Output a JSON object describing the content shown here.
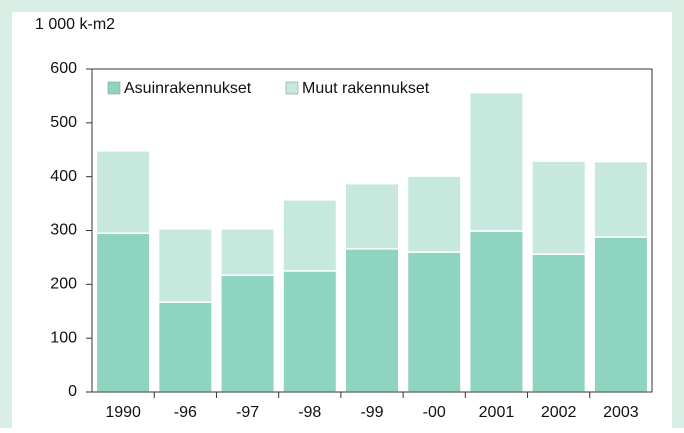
{
  "chart_data": {
    "type": "stacked_bar",
    "title": "1 000 k-m2",
    "categories": [
      "1990",
      "-96",
      "-97",
      "-98",
      "-99",
      "-00",
      "2001",
      "2002",
      "2003"
    ],
    "series": [
      {
        "name": "Asuinrakennukset",
        "color": "#8fd3c1",
        "values": [
          295,
          167,
          217,
          225,
          266,
          260,
          299,
          256,
          288
        ]
      },
      {
        "name": "Muut rakennukset",
        "color": "#c6e8dd",
        "values": [
          153,
          136,
          86,
          132,
          121,
          141,
          257,
          173,
          140
        ]
      }
    ],
    "ylim": [
      0,
      600
    ],
    "yticks": [
      0,
      100,
      200,
      300,
      400,
      500,
      600
    ],
    "grid": false,
    "legend": "top-left"
  }
}
